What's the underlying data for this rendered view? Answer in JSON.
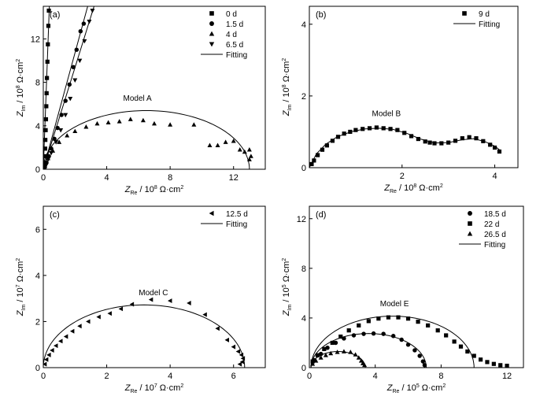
{
  "chart_data": [
    {
      "id": "a",
      "type": "scatter",
      "panel_label": "(a)",
      "annotation": "Model  A",
      "xlabel": {
        "main": "Z",
        "sub": "Re",
        "rest": " / 10",
        "sup": "8",
        "unit": " Ω·cm",
        "unit_sup": "2"
      },
      "ylabel": {
        "main": "Z",
        "sub": "Im",
        "rest": " / 10",
        "sup": "8",
        "unit": " Ω·cm",
        "unit_sup": "2"
      },
      "xlim": [
        0,
        14
      ],
      "ylim": [
        0,
        15
      ],
      "xticks": [
        0,
        4,
        8,
        12
      ],
      "yticks": [
        0,
        4,
        8,
        12
      ],
      "legend": {
        "position": "top-right",
        "fitting_label": "Fitting"
      },
      "series": [
        {
          "name": "0 d",
          "marker": "square",
          "points": [
            [
              0.05,
              0.2
            ],
            [
              0.08,
              0.6
            ],
            [
              0.1,
              1.2
            ],
            [
              0.12,
              1.9
            ],
            [
              0.13,
              2.7
            ],
            [
              0.15,
              3.6
            ],
            [
              0.17,
              4.6
            ],
            [
              0.19,
              5.8
            ],
            [
              0.21,
              7.0
            ],
            [
              0.23,
              8.4
            ],
            [
              0.26,
              9.9
            ],
            [
              0.29,
              11.5
            ],
            [
              0.32,
              13.2
            ],
            [
              0.35,
              14.6
            ]
          ],
          "fit": [
            [
              0,
              0
            ],
            [
              0.38,
              15
            ]
          ]
        },
        {
          "name": "1.5 d",
          "marker": "circle",
          "points": [
            [
              0.1,
              0.2
            ],
            [
              0.2,
              0.6
            ],
            [
              0.35,
              1.2
            ],
            [
              0.5,
              1.9
            ],
            [
              0.7,
              2.8
            ],
            [
              0.9,
              3.8
            ],
            [
              1.15,
              5.0
            ],
            [
              1.4,
              6.3
            ],
            [
              1.65,
              7.8
            ],
            [
              1.9,
              9.4
            ],
            [
              2.1,
              11.0
            ],
            [
              2.35,
              12.7
            ],
            [
              2.55,
              13.4
            ]
          ],
          "fit": [
            [
              0,
              0
            ],
            [
              2.8,
              15
            ]
          ]
        },
        {
          "name": "4 d",
          "marker": "triangle-up",
          "points": [
            [
              0.3,
              1.0
            ],
            [
              0.6,
              1.7
            ],
            [
              1.0,
              2.5
            ],
            [
              1.5,
              3.1
            ],
            [
              2.0,
              3.5
            ],
            [
              2.7,
              3.9
            ],
            [
              3.4,
              4.2
            ],
            [
              4.1,
              4.3
            ],
            [
              4.8,
              4.4
            ],
            [
              5.5,
              4.6
            ],
            [
              6.3,
              4.5
            ],
            [
              7.0,
              4.2
            ],
            [
              8.0,
              4.1
            ],
            [
              9.5,
              4.1
            ],
            [
              10.5,
              2.2
            ],
            [
              11.0,
              2.2
            ],
            [
              11.5,
              2.5
            ],
            [
              12.0,
              2.6
            ],
            [
              12.4,
              1.8
            ],
            [
              12.7,
              1.6
            ],
            [
              13.0,
              1.8
            ],
            [
              13.1,
              1.2
            ],
            [
              13.0,
              0.9
            ]
          ],
          "fit": "semicircle:0:13:5.4"
        },
        {
          "name": "6.5 d",
          "marker": "triangle-down",
          "points": [
            [
              0.15,
              0.3
            ],
            [
              0.3,
              0.9
            ],
            [
              0.5,
              1.5
            ],
            [
              0.8,
              2.5
            ],
            [
              1.1,
              3.6
            ],
            [
              1.4,
              5.0
            ],
            [
              1.7,
              6.5
            ],
            [
              2.0,
              8.2
            ],
            [
              2.3,
              10.0
            ],
            [
              2.6,
              11.8
            ],
            [
              2.9,
              13.6
            ],
            [
              3.1,
              14.6
            ]
          ],
          "fit": [
            [
              0,
              0
            ],
            [
              3.2,
              15
            ]
          ]
        }
      ]
    },
    {
      "id": "b",
      "type": "scatter",
      "panel_label": "(b)",
      "annotation": "Model  B",
      "xlabel": {
        "main": "Z",
        "sub": "Re",
        "rest": " / 10",
        "sup": "8",
        "unit": " Ω·cm",
        "unit_sup": "2"
      },
      "ylabel": {
        "main": "Z",
        "sub": "Im",
        "rest": " / 10",
        "sup": "8",
        "unit": " Ω·cm",
        "unit_sup": "2"
      },
      "xlim": [
        0,
        4.5
      ],
      "ylim": [
        0,
        4.5
      ],
      "xticks": [
        2,
        4
      ],
      "yticks": [
        0,
        2,
        4
      ],
      "legend": {
        "position": "top-right",
        "fitting_label": "Fitting"
      },
      "series": [
        {
          "name": "9 d",
          "marker": "square",
          "points": [
            [
              0.05,
              0.1
            ],
            [
              0.1,
              0.2
            ],
            [
              0.18,
              0.35
            ],
            [
              0.28,
              0.5
            ],
            [
              0.38,
              0.62
            ],
            [
              0.5,
              0.75
            ],
            [
              0.62,
              0.86
            ],
            [
              0.75,
              0.95
            ],
            [
              0.88,
              1.0
            ],
            [
              1.0,
              1.05
            ],
            [
              1.15,
              1.08
            ],
            [
              1.3,
              1.1
            ],
            [
              1.45,
              1.12
            ],
            [
              1.6,
              1.1
            ],
            [
              1.75,
              1.08
            ],
            [
              1.9,
              1.05
            ],
            [
              2.05,
              0.97
            ],
            [
              2.2,
              0.88
            ],
            [
              2.35,
              0.8
            ],
            [
              2.5,
              0.73
            ],
            [
              2.6,
              0.7
            ],
            [
              2.7,
              0.68
            ],
            [
              2.85,
              0.68
            ],
            [
              3.0,
              0.7
            ],
            [
              3.15,
              0.75
            ],
            [
              3.3,
              0.82
            ],
            [
              3.45,
              0.85
            ],
            [
              3.6,
              0.82
            ],
            [
              3.75,
              0.74
            ],
            [
              3.9,
              0.64
            ],
            [
              4.0,
              0.56
            ],
            [
              4.1,
              0.45
            ]
          ],
          "fit": [
            [
              0,
              0
            ],
            [
              0.15,
              0.38
            ],
            [
              0.35,
              0.65
            ],
            [
              0.6,
              0.86
            ],
            [
              0.9,
              1.0
            ],
            [
              1.2,
              1.08
            ],
            [
              1.5,
              1.1
            ],
            [
              1.8,
              1.07
            ],
            [
              2.1,
              0.96
            ],
            [
              2.4,
              0.8
            ],
            [
              2.7,
              0.69
            ],
            [
              3.0,
              0.7
            ],
            [
              3.3,
              0.78
            ],
            [
              3.55,
              0.81
            ],
            [
              3.8,
              0.72
            ],
            [
              4.0,
              0.6
            ],
            [
              4.1,
              0.5
            ]
          ]
        }
      ]
    },
    {
      "id": "c",
      "type": "scatter",
      "panel_label": "(c)",
      "annotation": "Model  C",
      "xlabel": {
        "main": "Z",
        "sub": "Re",
        "rest": " / 10",
        "sup": "7",
        "unit": " Ω·cm",
        "unit_sup": "2"
      },
      "ylabel": {
        "main": "Z",
        "sub": "Im",
        "rest": " / 10",
        "sup": "7",
        "unit": " Ω·cm",
        "unit_sup": "2"
      },
      "xlim": [
        0,
        7
      ],
      "ylim": [
        0,
        7
      ],
      "xticks": [
        0,
        2,
        4,
        6
      ],
      "yticks": [
        0,
        2,
        4,
        6
      ],
      "legend": {
        "position": "top-right",
        "fitting_label": "Fitting"
      },
      "series": [
        {
          "name": "12.5 d",
          "marker": "triangle-left",
          "points": [
            [
              0.05,
              0.15
            ],
            [
              0.1,
              0.35
            ],
            [
              0.18,
              0.55
            ],
            [
              0.28,
              0.75
            ],
            [
              0.4,
              0.95
            ],
            [
              0.55,
              1.15
            ],
            [
              0.72,
              1.35
            ],
            [
              0.92,
              1.58
            ],
            [
              1.15,
              1.8
            ],
            [
              1.42,
              2.0
            ],
            [
              1.75,
              2.2
            ],
            [
              2.1,
              2.35
            ],
            [
              2.45,
              2.55
            ],
            [
              2.8,
              2.75
            ],
            [
              3.4,
              2.95
            ],
            [
              4.0,
              2.9
            ],
            [
              4.6,
              2.8
            ],
            [
              5.1,
              2.3
            ],
            [
              5.5,
              1.7
            ],
            [
              5.8,
              1.2
            ],
            [
              6.0,
              0.9
            ],
            [
              6.15,
              0.7
            ],
            [
              6.25,
              0.55
            ],
            [
              6.3,
              0.4
            ],
            [
              6.28,
              0.25
            ],
            [
              6.2,
              0.15
            ]
          ],
          "fit": "semicircle:0:6.35:2.72"
        }
      ]
    },
    {
      "id": "d",
      "type": "scatter",
      "panel_label": "(d)",
      "annotation": "Model  E",
      "xlabel": {
        "main": "Z",
        "sub": "Re",
        "rest": " / 10",
        "sup": "5",
        "unit": " Ω·cm",
        "unit_sup": "2"
      },
      "ylabel": {
        "main": "Z",
        "sub": "Im",
        "rest": " / 10",
        "sup": "5",
        "unit": " Ω·cm",
        "unit_sup": "2"
      },
      "xlim": [
        0,
        13
      ],
      "ylim": [
        0,
        13
      ],
      "xticks": [
        0,
        4,
        8,
        12
      ],
      "yticks": [
        0,
        4,
        8,
        12
      ],
      "legend": {
        "position": "top-right",
        "fitting_label": "Fitting"
      },
      "series": [
        {
          "name": "18.5 d",
          "marker": "circle",
          "points": [
            [
              0.3,
              0.6
            ],
            [
              0.7,
              1.1
            ],
            [
              1.1,
              1.6
            ],
            [
              1.6,
              2.0
            ],
            [
              2.1,
              2.35
            ],
            [
              2.7,
              2.6
            ],
            [
              3.3,
              2.72
            ],
            [
              3.9,
              2.75
            ],
            [
              4.5,
              2.72
            ],
            [
              5.1,
              2.55
            ],
            [
              5.6,
              2.25
            ],
            [
              6.0,
              1.85
            ],
            [
              6.4,
              1.4
            ],
            [
              6.7,
              0.95
            ],
            [
              6.9,
              0.5
            ],
            [
              7.0,
              0.2
            ]
          ],
          "fit": "semicircle:0.1:7.1:2.75"
        },
        {
          "name": "22 d",
          "marker": "square",
          "points": [
            [
              0.2,
              0.5
            ],
            [
              0.5,
              1.0
            ],
            [
              0.9,
              1.5
            ],
            [
              1.4,
              2.0
            ],
            [
              1.9,
              2.5
            ],
            [
              2.4,
              3.0
            ],
            [
              3.0,
              3.4
            ],
            [
              3.6,
              3.75
            ],
            [
              4.2,
              3.95
            ],
            [
              4.8,
              4.05
            ],
            [
              5.4,
              4.05
            ],
            [
              6.0,
              3.95
            ],
            [
              6.6,
              3.7
            ],
            [
              7.2,
              3.4
            ],
            [
              7.8,
              3.0
            ],
            [
              8.3,
              2.6
            ],
            [
              8.8,
              2.1
            ],
            [
              9.2,
              1.7
            ],
            [
              9.6,
              1.3
            ],
            [
              10.0,
              0.95
            ],
            [
              10.4,
              0.65
            ],
            [
              10.8,
              0.45
            ],
            [
              11.2,
              0.3
            ],
            [
              11.6,
              0.2
            ],
            [
              12.0,
              0.15
            ]
          ],
          "fit": "semicircle:0.1:10.0:4.15"
        },
        {
          "name": "26.5 d",
          "marker": "triangle-up",
          "points": [
            [
              0.2,
              0.3
            ],
            [
              0.4,
              0.55
            ],
            [
              0.7,
              0.8
            ],
            [
              1.0,
              1.0
            ],
            [
              1.3,
              1.15
            ],
            [
              1.7,
              1.25
            ],
            [
              2.1,
              1.3
            ],
            [
              2.5,
              1.25
            ],
            [
              2.8,
              1.05
            ],
            [
              3.0,
              0.8
            ],
            [
              3.15,
              0.55
            ],
            [
              3.25,
              0.35
            ],
            [
              3.35,
              0.2
            ]
          ],
          "fit": "semicircle:0.1:3.4:1.3"
        }
      ]
    }
  ]
}
